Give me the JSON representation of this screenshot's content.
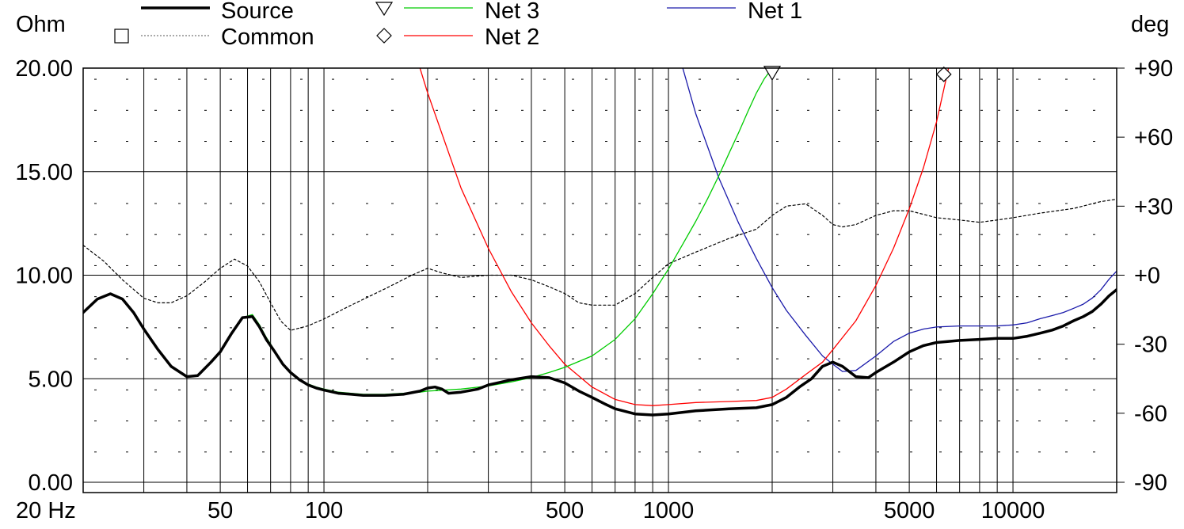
{
  "chart_data": {
    "type": "line",
    "title": "",
    "xlabel": "",
    "ylabel": "Ohm",
    "y2label": "deg",
    "x_scale": "log",
    "xlim": [
      20,
      20000
    ],
    "ylim": [
      0,
      20
    ],
    "y2lim": [
      -90,
      90
    ],
    "grid": true,
    "legend_position": "top",
    "x_tick_labels": [
      {
        "value": 20,
        "label": "20 Hz"
      },
      {
        "value": 50,
        "label": "50"
      },
      {
        "value": 100,
        "label": "100"
      },
      {
        "value": 500,
        "label": "500"
      },
      {
        "value": 1000,
        "label": "1000"
      },
      {
        "value": 5000,
        "label": "5000"
      },
      {
        "value": 10000,
        "label": "10000"
      }
    ],
    "y_tick_labels": [
      {
        "value": 0,
        "label": "0.00"
      },
      {
        "value": 5,
        "label": "5.00"
      },
      {
        "value": 10,
        "label": "10.00"
      },
      {
        "value": 15,
        "label": "15.00"
      },
      {
        "value": 20,
        "label": "20.00"
      }
    ],
    "y2_tick_labels": [
      {
        "value": 90,
        "label": "+90"
      },
      {
        "value": 60,
        "label": "+60"
      },
      {
        "value": 30,
        "label": "+30"
      },
      {
        "value": 0,
        "label": "+0"
      },
      {
        "value": -30,
        "label": "-30"
      },
      {
        "value": -60,
        "label": "-60"
      },
      {
        "value": -90,
        "label": "-90"
      }
    ],
    "series": [
      {
        "name": "Source",
        "color": "#000000",
        "style": "solid",
        "width": 3.5,
        "axis": "left",
        "x": [
          20,
          22,
          24,
          26,
          28,
          30,
          33,
          36,
          40,
          43,
          47,
          50,
          54,
          58,
          62,
          65,
          68,
          72,
          76,
          80,
          85,
          90,
          95,
          100,
          110,
          120,
          130,
          150,
          170,
          190,
          200,
          210,
          220,
          230,
          250,
          280,
          300,
          350,
          400,
          450,
          500,
          550,
          600,
          650,
          700,
          800,
          900,
          1000,
          1200,
          1500,
          1800,
          2000,
          2200,
          2400,
          2600,
          2800,
          3000,
          3200,
          3500,
          3800,
          4000,
          4500,
          5000,
          5500,
          6000,
          7000,
          8000,
          9000,
          10000,
          11000,
          12000,
          13000,
          14000,
          15000,
          16000,
          17000,
          18000,
          19000,
          20000
        ],
        "y": [
          8.2,
          8.85,
          9.1,
          8.85,
          8.2,
          7.4,
          6.4,
          5.6,
          5.1,
          5.15,
          5.8,
          6.3,
          7.2,
          7.95,
          8.0,
          7.5,
          6.9,
          6.3,
          5.7,
          5.3,
          4.95,
          4.7,
          4.55,
          4.45,
          4.3,
          4.25,
          4.2,
          4.2,
          4.25,
          4.4,
          4.55,
          4.6,
          4.5,
          4.3,
          4.35,
          4.5,
          4.7,
          4.95,
          5.1,
          5.05,
          4.8,
          4.4,
          4.1,
          3.8,
          3.55,
          3.3,
          3.25,
          3.3,
          3.45,
          3.55,
          3.6,
          3.75,
          4.1,
          4.6,
          5.0,
          5.6,
          5.8,
          5.6,
          5.1,
          5.05,
          5.3,
          5.8,
          6.3,
          6.6,
          6.75,
          6.85,
          6.9,
          6.95,
          6.95,
          7.05,
          7.2,
          7.35,
          7.55,
          7.8,
          8.0,
          8.25,
          8.6,
          9.0,
          9.3
        ]
      },
      {
        "name": "Common",
        "color": "#000000",
        "style": "dashed",
        "width": 1.2,
        "axis": "right",
        "x": [
          20,
          23,
          26,
          30,
          33,
          36,
          40,
          45,
          50,
          55,
          60,
          65,
          70,
          75,
          80,
          90,
          100,
          120,
          150,
          180,
          200,
          220,
          250,
          300,
          350,
          400,
          450,
          500,
          550,
          600,
          700,
          800,
          900,
          1000,
          1200,
          1500,
          1800,
          2000,
          2200,
          2500,
          2800,
          3000,
          3200,
          3500,
          4000,
          4500,
          5000,
          6000,
          7000,
          8000,
          9000,
          10000,
          12000,
          15000,
          18000,
          20000
        ],
        "y": [
          13,
          6,
          -2,
          -10,
          -12,
          -12,
          -9,
          -3,
          3,
          7,
          4,
          -3,
          -12,
          -20,
          -24,
          -22,
          -19,
          -13,
          -6,
          0,
          3,
          1,
          -1,
          0,
          0,
          -2,
          -5,
          -8,
          -12,
          -13,
          -13,
          -8,
          -1,
          5,
          10,
          16,
          20,
          26,
          30,
          31,
          26,
          22,
          21,
          22,
          26,
          28,
          28,
          25,
          24,
          23,
          24,
          25,
          27,
          29,
          32,
          33
        ]
      },
      {
        "name": "Net 3",
        "color": "#00cc00",
        "style": "solid",
        "width": 1.3,
        "axis": "left",
        "x": [
          20,
          22,
          24,
          26,
          28,
          30,
          33,
          36,
          40,
          43,
          47,
          50,
          54,
          58,
          62,
          65,
          68,
          72,
          76,
          80,
          85,
          90,
          95,
          100,
          110,
          120,
          130,
          150,
          170,
          190,
          200,
          250,
          300,
          350,
          400,
          450,
          500,
          600,
          700,
          800,
          900,
          1000,
          1100,
          1200,
          1300,
          1400,
          1500,
          1600,
          1700,
          1800,
          1900,
          2000
        ],
        "y": [
          8.2,
          8.85,
          9.1,
          8.85,
          8.2,
          7.4,
          6.4,
          5.6,
          5.1,
          5.15,
          5.8,
          6.3,
          7.2,
          7.95,
          8.1,
          7.6,
          7.0,
          6.35,
          5.7,
          5.3,
          4.95,
          4.75,
          4.6,
          4.5,
          4.35,
          4.3,
          4.25,
          4.25,
          4.3,
          4.35,
          4.4,
          4.5,
          4.65,
          4.85,
          5.05,
          5.3,
          5.55,
          6.1,
          6.9,
          7.9,
          9.1,
          10.3,
          11.5,
          12.6,
          13.7,
          14.8,
          15.9,
          16.9,
          17.9,
          18.8,
          19.5,
          20.0
        ]
      },
      {
        "name": "Net 2",
        "color": "#ff0000",
        "style": "solid",
        "width": 1.3,
        "axis": "left",
        "x": [
          190,
          200,
          250,
          300,
          350,
          400,
          450,
          500,
          600,
          700,
          800,
          900,
          1000,
          1200,
          1500,
          1800,
          2000,
          2200,
          2500,
          2800,
          3000,
          3500,
          4000,
          4500,
          5000,
          5500,
          6000,
          6500
        ],
        "y": [
          20.0,
          18.8,
          14.2,
          11.3,
          9.2,
          7.7,
          6.6,
          5.7,
          4.6,
          4.0,
          3.75,
          3.7,
          3.75,
          3.85,
          3.9,
          3.95,
          4.1,
          4.5,
          5.2,
          5.8,
          6.4,
          7.8,
          9.5,
          11.3,
          13.2,
          15.2,
          17.4,
          20.0
        ]
      },
      {
        "name": "Net 1",
        "color": "#1a1aaa",
        "style": "solid",
        "width": 1.3,
        "axis": "left",
        "x": [
          1100,
          1200,
          1400,
          1600,
          1800,
          2000,
          2200,
          2500,
          2800,
          3000,
          3200,
          3500,
          4000,
          4500,
          5000,
          5500,
          6000,
          7000,
          8000,
          9000,
          10000,
          11000,
          12000,
          13000,
          14000,
          15000,
          16000,
          17000,
          18000,
          19000,
          20000
        ],
        "y": [
          20.0,
          17.8,
          14.7,
          12.5,
          10.8,
          9.4,
          8.3,
          7.1,
          6.1,
          5.7,
          5.35,
          5.4,
          6.1,
          6.8,
          7.2,
          7.4,
          7.5,
          7.55,
          7.55,
          7.55,
          7.6,
          7.7,
          7.9,
          8.05,
          8.2,
          8.4,
          8.6,
          8.9,
          9.3,
          9.8,
          10.2
        ]
      }
    ],
    "markers": [
      {
        "series": "Net 3",
        "shape": "triangle-down",
        "x": 2000,
        "y": 19.7
      },
      {
        "series": "Net 2",
        "shape": "diamond",
        "x": 6300,
        "y": 19.7
      }
    ]
  }
}
